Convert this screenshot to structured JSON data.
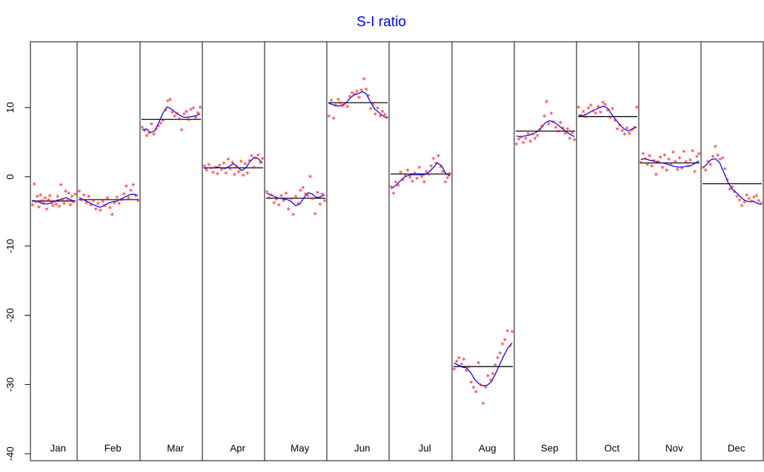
{
  "chart_data": {
    "type": "scatter",
    "title": "S-I ratio",
    "ylim": [
      -41,
      19.5
    ],
    "yticks": [
      -40,
      -30,
      -20,
      -10,
      0,
      10
    ],
    "ytick_labels": [
      "-40",
      "-30",
      "-20",
      "-10",
      "0",
      "10"
    ],
    "colors": {
      "title": "#0000ff",
      "points": "#ff0000",
      "smooth": "#0000ff",
      "mean": "#000000"
    },
    "panels": [
      {
        "label": "Jan",
        "mean": -3.5,
        "points": [
          -4.2,
          -1.2,
          -3.8,
          -3.0,
          -4.5,
          -2.8,
          -3.6,
          -4.0,
          -3.2,
          -4.8,
          -3.5,
          -2.9,
          -3.9,
          -4.3,
          -3.7,
          -4.1,
          -3.0,
          -4.4,
          -1.3,
          -3.4,
          -4.0,
          -2.2,
          -3.6,
          -2.5,
          -4.2,
          -3.0,
          -3.8,
          -2.7
        ],
        "smooth": [
          -3.4,
          -3.5,
          -3.6,
          -3.8,
          -3.9,
          -3.9,
          -3.8,
          -3.6,
          -3.4,
          -3.3,
          -3.2,
          -3.0,
          -3.2,
          -3.4,
          -3.5
        ]
      },
      {
        "label": "Feb",
        "mean": -3.3,
        "points": [
          -2.2,
          -3.5,
          -2.8,
          -3.9,
          -3.0,
          -4.2,
          -3.6,
          -4.8,
          -4.0,
          -5.0,
          -3.7,
          -4.3,
          -3.2,
          -4.6,
          -5.6,
          -3.9,
          -3.1,
          -4.0,
          -3.5,
          -2.6,
          -1.5,
          -3.2,
          -2.1,
          -1.3,
          -2.9,
          -3.6
        ],
        "smooth": [
          -3.0,
          -3.3,
          -3.6,
          -3.9,
          -4.2,
          -4.4,
          -4.1,
          -3.8,
          -3.6,
          -3.5,
          -3.2,
          -2.9,
          -2.6,
          -2.5,
          -2.7
        ]
      },
      {
        "label": "Mar",
        "mean": 8.3,
        "points": [
          7.0,
          6.5,
          5.8,
          6.2,
          7.5,
          6.0,
          6.8,
          7.2,
          7.6,
          8.0,
          9.5,
          10.8,
          11.0,
          9.2,
          8.6,
          9.0,
          8.2,
          6.6,
          8.9,
          9.3,
          8.1,
          9.6,
          9.8,
          8.4,
          9.1,
          9.9
        ],
        "smooth": [
          6.8,
          6.9,
          6.4,
          6.6,
          7.8,
          9.2,
          10.1,
          9.8,
          9.3,
          8.9,
          8.6,
          8.6,
          8.7,
          8.8,
          9.1
        ]
      },
      {
        "label": "Apr",
        "mean": 1.3,
        "points": [
          1.4,
          0.8,
          1.6,
          1.1,
          0.5,
          1.2,
          0.3,
          1.5,
          0.9,
          1.8,
          0.4,
          2.4,
          1.0,
          1.9,
          0.2,
          1.3,
          0.6,
          2.1,
          0.1,
          1.7,
          0.4,
          2.2,
          2.9,
          1.2,
          2.6,
          3.0,
          1.9,
          2.5
        ],
        "smooth": [
          1.2,
          1.3,
          1.3,
          1.4,
          1.3,
          1.2,
          1.5,
          1.9,
          1.4,
          0.9,
          1.3,
          2.2,
          2.8,
          2.6,
          2.0
        ]
      },
      {
        "label": "May",
        "mean": -3.1,
        "points": [
          -2.3,
          -3.2,
          -2.8,
          -3.9,
          -3.4,
          -4.2,
          -2.9,
          -3.6,
          -2.5,
          -4.8,
          -3.3,
          -5.6,
          -3.0,
          -4.0,
          -2.1,
          -1.7,
          -2.6,
          -2.9,
          -0.1,
          -3.3,
          -5.5,
          -2.4,
          -4.1,
          -2.7,
          -3.6
        ],
        "smooth": [
          -2.4,
          -2.6,
          -2.9,
          -3.1,
          -3.2,
          -3.3,
          -3.6,
          -4.2,
          -3.9,
          -3.0,
          -2.3,
          -2.5,
          -3.0,
          -2.9,
          -2.6
        ]
      },
      {
        "label": "Jun",
        "mean": 10.7,
        "points": [
          8.6,
          10.9,
          8.3,
          10.2,
          11.0,
          10.5,
          10.1,
          10.4,
          10.0,
          11.5,
          12.0,
          11.8,
          12.2,
          11.3,
          12.4,
          14.0,
          12.5,
          11.6,
          9.7,
          10.4,
          8.9,
          9.8,
          8.6,
          9.3,
          8.8,
          8.4
        ],
        "smooth": [
          10.6,
          10.4,
          10.2,
          10.3,
          10.6,
          11.3,
          11.8,
          12.0,
          12.3,
          12.0,
          10.8,
          9.8,
          9.3,
          8.8,
          8.5
        ]
      },
      {
        "label": "Jul",
        "mean": 0.4,
        "points": [
          -1.6,
          -2.5,
          -0.9,
          -1.4,
          0.5,
          -0.6,
          0.1,
          0.8,
          -0.2,
          -0.8,
          0.4,
          -0.4,
          1.2,
          -0.1,
          -0.9,
          0.6,
          0.2,
          1.4,
          2.5,
          1.8,
          2.9,
          1.3,
          0.6,
          -0.9,
          -0.3,
          0.3
        ],
        "smooth": [
          -1.7,
          -1.3,
          -0.7,
          -0.1,
          0.2,
          0.3,
          0.3,
          0.3,
          0.3,
          0.7,
          1.3,
          2.0,
          1.6,
          0.5,
          0.1
        ]
      },
      {
        "label": "Aug",
        "mean": -27.4,
        "points": [
          -27.9,
          -26.8,
          -26.3,
          -27.2,
          -26.5,
          -28.1,
          -27.6,
          -29.8,
          -30.6,
          -31.2,
          -27.0,
          -30.2,
          -32.9,
          -30.5,
          -28.9,
          -29.5,
          -28.6,
          -27.3,
          -26.3,
          -25.6,
          -24.3,
          -23.7,
          -22.4,
          -24.6,
          -22.5
        ],
        "smooth": [
          -26.9,
          -27.2,
          -27.5,
          -27.6,
          -28.3,
          -29.3,
          -29.9,
          -30.2,
          -30.1,
          -29.6,
          -28.4,
          -27.1,
          -25.8,
          -24.7,
          -24.0
        ]
      },
      {
        "label": "Sep",
        "mean": 6.6,
        "points": [
          4.6,
          5.3,
          5.6,
          4.8,
          5.4,
          6.1,
          5.0,
          6.0,
          5.4,
          5.8,
          6.6,
          7.2,
          8.6,
          10.7,
          7.5,
          9.0,
          7.8,
          7.0,
          6.4,
          7.7,
          6.9,
          6.1,
          6.8,
          5.4,
          6.2,
          5.2
        ],
        "smooth": [
          5.9,
          5.8,
          5.9,
          6.0,
          6.2,
          6.5,
          7.1,
          7.8,
          8.1,
          7.9,
          7.5,
          7.0,
          6.5,
          6.1,
          5.8
        ]
      },
      {
        "label": "Oct",
        "mean": 8.7,
        "points": [
          9.9,
          8.7,
          9.3,
          8.5,
          9.8,
          10.2,
          9.4,
          9.0,
          10.0,
          9.2,
          10.6,
          10.3,
          9.5,
          8.4,
          9.7,
          8.0,
          6.8,
          7.3,
          6.5,
          6.0,
          6.9,
          6.1,
          6.6,
          7.0,
          9.9
        ],
        "smooth": [
          8.9,
          8.8,
          9.1,
          9.4,
          9.7,
          10.0,
          10.2,
          9.9,
          9.0,
          8.2,
          7.5,
          6.9,
          6.6,
          6.9,
          7.2
        ]
      },
      {
        "label": "Nov",
        "mean": 2.0,
        "points": [
          1.9,
          3.2,
          2.5,
          1.6,
          2.9,
          1.4,
          2.2,
          0.2,
          2.0,
          2.7,
          1.2,
          3.0,
          0.8,
          2.4,
          1.7,
          3.4,
          2.1,
          0.9,
          2.6,
          1.1,
          3.5,
          2.0,
          1.4,
          2.3,
          3.6,
          0.6,
          2.8,
          3.2
        ],
        "smooth": [
          2.5,
          2.6,
          2.4,
          2.3,
          2.1,
          2.0,
          1.9,
          1.7,
          1.5,
          1.4,
          1.4,
          1.5,
          1.6,
          1.9,
          2.3
        ]
      },
      {
        "label": "Dec",
        "mean": -1.0,
        "points": [
          1.2,
          0.8,
          2.1,
          1.6,
          2.8,
          4.2,
          3.0,
          2.4,
          2.6,
          1.0,
          -0.6,
          -1.9,
          -1.6,
          -2.3,
          -3.0,
          -3.5,
          -4.3,
          -3.8,
          -2.8,
          -3.3,
          -3.7,
          -3.1,
          -2.9,
          -3.6,
          -4.0
        ],
        "smooth": [
          1.3,
          1.9,
          2.5,
          2.6,
          2.0,
          0.6,
          -0.8,
          -1.8,
          -2.3,
          -2.9,
          -3.4,
          -3.6,
          -3.5,
          -3.8,
          -4.0
        ]
      }
    ]
  }
}
